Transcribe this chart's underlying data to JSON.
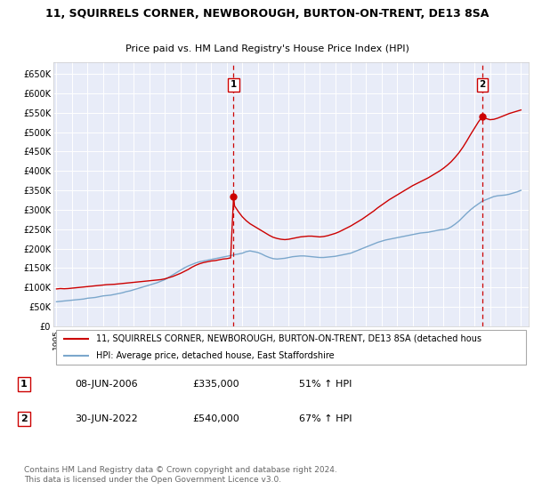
{
  "title": "11, SQUIRRELS CORNER, NEWBOROUGH, BURTON-ON-TRENT, DE13 8SA",
  "subtitle": "Price paid vs. HM Land Registry's House Price Index (HPI)",
  "plot_bg_color": "#e8ecf8",
  "grid_color": "#ffffff",
  "red_color": "#cc0000",
  "blue_color": "#7ba7cc",
  "legend_line1": "11, SQUIRRELS CORNER, NEWBOROUGH, BURTON-ON-TRENT, DE13 8SA (detached hous",
  "legend_line2": "HPI: Average price, detached house, East Staffordshire",
  "sale1_date": "08-JUN-2006",
  "sale1_price": 335000,
  "sale1_label": "£335,000",
  "sale1_pct": "51% ↑ HPI",
  "sale2_date": "30-JUN-2022",
  "sale2_price": 540000,
  "sale2_label": "£540,000",
  "sale2_pct": "67% ↑ HPI",
  "footer": "Contains HM Land Registry data © Crown copyright and database right 2024.\nThis data is licensed under the Open Government Licence v3.0.",
  "ylim": [
    0,
    680000
  ],
  "yticks": [
    0,
    50000,
    100000,
    150000,
    200000,
    250000,
    300000,
    350000,
    400000,
    450000,
    500000,
    550000,
    600000,
    650000
  ],
  "sale1_x": 2006.44,
  "sale2_x": 2022.5,
  "hpi_years": [
    1995,
    1995.25,
    1995.5,
    1995.75,
    1996,
    1996.25,
    1996.5,
    1996.75,
    1997,
    1997.25,
    1997.5,
    1997.75,
    1998,
    1998.25,
    1998.5,
    1998.75,
    1999,
    1999.25,
    1999.5,
    1999.75,
    2000,
    2000.25,
    2000.5,
    2000.75,
    2001,
    2001.25,
    2001.5,
    2001.75,
    2002,
    2002.25,
    2002.5,
    2002.75,
    2003,
    2003.25,
    2003.5,
    2003.75,
    2004,
    2004.25,
    2004.5,
    2004.75,
    2005,
    2005.25,
    2005.5,
    2005.75,
    2006,
    2006.25,
    2006.5,
    2006.75,
    2007,
    2007.25,
    2007.5,
    2007.75,
    2008,
    2008.25,
    2008.5,
    2008.75,
    2009,
    2009.25,
    2009.5,
    2009.75,
    2010,
    2010.25,
    2010.5,
    2010.75,
    2011,
    2011.25,
    2011.5,
    2011.75,
    2012,
    2012.25,
    2012.5,
    2012.75,
    2013,
    2013.25,
    2013.5,
    2013.75,
    2014,
    2014.25,
    2014.5,
    2014.75,
    2015,
    2015.25,
    2015.5,
    2015.75,
    2016,
    2016.25,
    2016.5,
    2016.75,
    2017,
    2017.25,
    2017.5,
    2017.75,
    2018,
    2018.25,
    2018.5,
    2018.75,
    2019,
    2019.25,
    2019.5,
    2019.75,
    2020,
    2020.25,
    2020.5,
    2020.75,
    2021,
    2021.25,
    2021.5,
    2021.75,
    2022,
    2022.25,
    2022.5,
    2022.75,
    2023,
    2023.25,
    2023.5,
    2023.75,
    2024,
    2024.25,
    2024.5,
    2024.75,
    2025
  ],
  "hpi_values": [
    63000,
    64000,
    65000,
    66000,
    67000,
    68000,
    69000,
    70000,
    72000,
    73000,
    74000,
    76000,
    78000,
    79000,
    80000,
    82000,
    84000,
    86000,
    89000,
    91000,
    94000,
    97000,
    100000,
    103000,
    106000,
    109000,
    112000,
    116000,
    120000,
    126000,
    132000,
    138000,
    144000,
    150000,
    155000,
    159000,
    163000,
    166000,
    168000,
    170000,
    172000,
    174000,
    176000,
    178000,
    180000,
    182000,
    184000,
    186000,
    188000,
    192000,
    194000,
    192000,
    190000,
    186000,
    181000,
    177000,
    174000,
    173000,
    174000,
    175000,
    177000,
    179000,
    180000,
    181000,
    181000,
    180000,
    179000,
    178000,
    177000,
    177000,
    178000,
    179000,
    180000,
    182000,
    184000,
    186000,
    188000,
    192000,
    196000,
    200000,
    204000,
    208000,
    212000,
    216000,
    219000,
    222000,
    224000,
    226000,
    228000,
    230000,
    232000,
    234000,
    236000,
    238000,
    240000,
    241000,
    242000,
    244000,
    246000,
    248000,
    249000,
    251000,
    256000,
    263000,
    271000,
    281000,
    291000,
    300000,
    308000,
    315000,
    322000,
    326000,
    330000,
    334000,
    336000,
    337000,
    338000,
    340000,
    343000,
    346000,
    350000
  ],
  "property_years": [
    1995.0,
    1995.25,
    1995.5,
    1995.75,
    1996.0,
    1996.25,
    1996.5,
    1996.75,
    1997.0,
    1997.25,
    1997.5,
    1997.75,
    1998.0,
    1998.25,
    1998.5,
    1998.75,
    1999.0,
    1999.25,
    1999.5,
    1999.75,
    2000.0,
    2000.25,
    2000.5,
    2000.75,
    2001.0,
    2001.25,
    2001.5,
    2001.75,
    2002.0,
    2002.25,
    2002.5,
    2002.75,
    2003.0,
    2003.25,
    2003.5,
    2003.75,
    2004.0,
    2004.25,
    2004.5,
    2004.75,
    2005.0,
    2005.25,
    2005.5,
    2005.75,
    2006.0,
    2006.25,
    2006.44,
    2006.5,
    2006.75,
    2007.0,
    2007.25,
    2007.5,
    2007.75,
    2008.0,
    2008.25,
    2008.5,
    2008.75,
    2009.0,
    2009.25,
    2009.5,
    2009.75,
    2010.0,
    2010.25,
    2010.5,
    2010.75,
    2011.0,
    2011.25,
    2011.5,
    2011.75,
    2012.0,
    2012.25,
    2012.5,
    2012.75,
    2013.0,
    2013.25,
    2013.5,
    2013.75,
    2014.0,
    2014.25,
    2014.5,
    2014.75,
    2015.0,
    2015.25,
    2015.5,
    2015.75,
    2016.0,
    2016.25,
    2016.5,
    2016.75,
    2017.0,
    2017.25,
    2017.5,
    2017.75,
    2018.0,
    2018.25,
    2018.5,
    2018.75,
    2019.0,
    2019.25,
    2019.5,
    2019.75,
    2020.0,
    2020.25,
    2020.5,
    2020.75,
    2021.0,
    2021.25,
    2021.5,
    2021.75,
    2022.0,
    2022.25,
    2022.5,
    2022.75,
    2023.0,
    2023.25,
    2023.5,
    2023.75,
    2024.0,
    2024.25,
    2024.5,
    2024.75,
    2025.0
  ],
  "property_values": [
    96000,
    97000,
    96500,
    97000,
    98000,
    99000,
    100000,
    101000,
    102000,
    103000,
    104000,
    105000,
    106000,
    107000,
    107500,
    108000,
    109000,
    110000,
    111000,
    112000,
    113000,
    114000,
    115000,
    116000,
    117000,
    118000,
    119000,
    120000,
    122000,
    125000,
    128000,
    132000,
    136000,
    141000,
    146000,
    152000,
    157000,
    161000,
    164000,
    166000,
    168000,
    169000,
    171000,
    173000,
    174000,
    176000,
    335000,
    310000,
    295000,
    282000,
    272000,
    264000,
    258000,
    252000,
    246000,
    240000,
    234000,
    229000,
    226000,
    224000,
    223000,
    224000,
    226000,
    228000,
    230000,
    231000,
    232000,
    232000,
    231000,
    230000,
    231000,
    233000,
    236000,
    239000,
    243000,
    248000,
    253000,
    258000,
    264000,
    270000,
    276000,
    283000,
    290000,
    297000,
    305000,
    312000,
    319000,
    326000,
    332000,
    338000,
    344000,
    350000,
    356000,
    362000,
    367000,
    372000,
    377000,
    382000,
    388000,
    394000,
    400000,
    407000,
    415000,
    424000,
    435000,
    447000,
    461000,
    477000,
    494000,
    510000,
    526000,
    540000,
    535000,
    532000,
    533000,
    536000,
    540000,
    544000,
    548000,
    551000,
    554000,
    557000
  ]
}
